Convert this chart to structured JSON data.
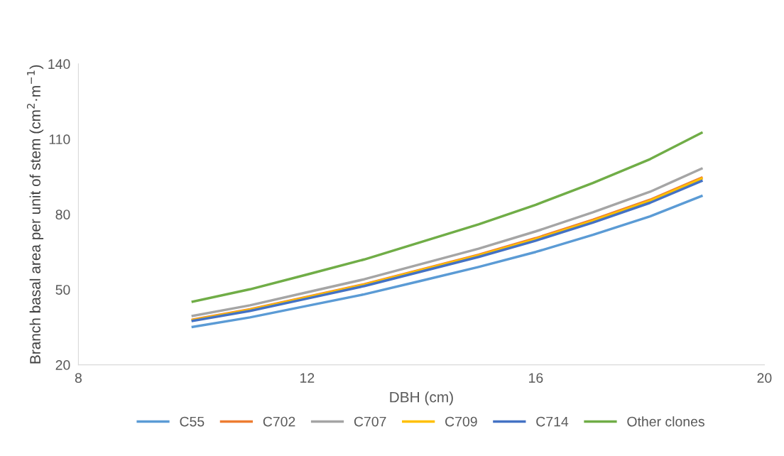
{
  "chart_data": {
    "type": "line",
    "xlabel": "DBH (cm)",
    "ylabel": "Branch basal area per unit of stem (cm$^{2}$·m$^{−1}$)",
    "x": [
      10,
      11,
      12,
      13,
      14,
      15,
      16,
      17,
      18,
      18.9
    ],
    "series": [
      {
        "name": "C55",
        "color": "#5b9bd5",
        "values": [
          35.1,
          38.9,
          43.5,
          48.1,
          53.5,
          59.0,
          65.0,
          71.8,
          79.2,
          87.3
        ]
      },
      {
        "name": "C702",
        "color": "#ed7d31",
        "values": [
          38.0,
          42.1,
          47.1,
          52.1,
          58.0,
          63.9,
          70.5,
          77.8,
          85.8,
          94.6
        ]
      },
      {
        "name": "C707",
        "color": "#a5a5a5",
        "values": [
          39.5,
          43.7,
          48.9,
          54.1,
          60.2,
          66.3,
          73.2,
          80.8,
          89.0,
          98.2
        ]
      },
      {
        "name": "C709",
        "color": "#ffc000",
        "values": [
          37.8,
          41.9,
          46.9,
          51.9,
          57.8,
          63.6,
          70.1,
          77.4,
          85.4,
          94.2
        ]
      },
      {
        "name": "C714",
        "color": "#4472c4",
        "values": [
          37.5,
          41.5,
          46.4,
          51.4,
          57.2,
          63.0,
          69.5,
          76.7,
          84.6,
          93.3
        ]
      },
      {
        "name": "Other clones",
        "color": "#70ad47",
        "values": [
          45.2,
          50.1,
          56.0,
          62.0,
          69.0,
          76.0,
          83.8,
          92.5,
          102.0,
          112.5
        ]
      }
    ],
    "xlim": [
      8,
      20
    ],
    "xticks": [
      8,
      12,
      16,
      20
    ],
    "ylim": [
      20,
      140
    ],
    "yticks": [
      20,
      50,
      80,
      110,
      140
    ],
    "grid": false,
    "legend": "bottom",
    "marker": "none",
    "line_style": "solid"
  }
}
